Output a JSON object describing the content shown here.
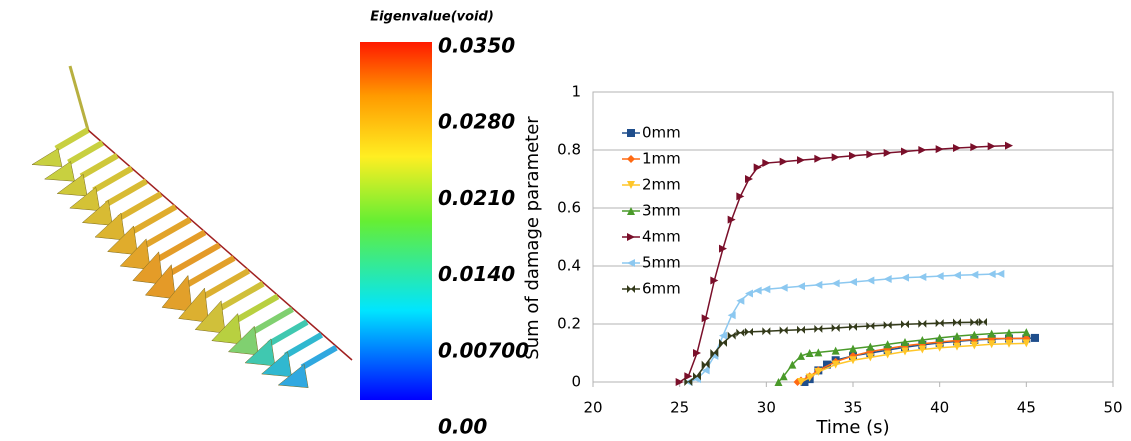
{
  "colorbar": {
    "title": "Eigenvalue(void)",
    "ticks": [
      {
        "value": 0.035,
        "label": "0.0350"
      },
      {
        "value": 0.028,
        "label": "0.0280"
      },
      {
        "value": 0.021,
        "label": "0.0210"
      },
      {
        "value": 0.014,
        "label": "0.0140"
      },
      {
        "value": 0.007,
        "label": "0.00700"
      },
      {
        "value": 0,
        "label": "0.00"
      }
    ]
  },
  "chart_data": {
    "type": "line",
    "xlabel": "Time (s)",
    "ylabel": "Sum of damage parameter",
    "xlim": [
      20,
      50
    ],
    "xticks": [
      20,
      25,
      30,
      35,
      40,
      45,
      50
    ],
    "ylim": [
      0,
      1
    ],
    "yticks": [
      0,
      0.2,
      0.4,
      0.6,
      0.8,
      1
    ],
    "grid": true,
    "series": [
      {
        "name": "0mm",
        "color": "#1f4e8c",
        "marker": "square",
        "x": [
          32.2,
          32.5,
          33,
          33.5,
          34,
          35,
          36,
          37,
          38,
          39,
          40,
          41,
          42,
          43,
          44,
          45,
          45.5
        ],
        "values": [
          0,
          0.01,
          0.04,
          0.06,
          0.075,
          0.09,
          0.1,
          0.11,
          0.12,
          0.128,
          0.135,
          0.14,
          0.145,
          0.148,
          0.15,
          0.15,
          0.152
        ]
      },
      {
        "name": "1mm",
        "color": "#ff6a13",
        "marker": "diamond",
        "x": [
          31.8,
          32,
          32.5,
          33,
          34,
          35,
          36,
          37,
          38,
          39,
          40,
          41,
          42,
          43,
          44,
          45
        ],
        "values": [
          0,
          0.005,
          0.02,
          0.04,
          0.07,
          0.09,
          0.105,
          0.115,
          0.125,
          0.132,
          0.138,
          0.143,
          0.147,
          0.15,
          0.15,
          0.151
        ]
      },
      {
        "name": "2mm",
        "color": "#ffc629",
        "marker": "tri-down",
        "x": [
          32,
          32.5,
          33,
          34,
          35,
          36,
          37,
          38,
          39,
          40,
          41,
          42,
          43,
          44,
          45
        ],
        "values": [
          0,
          0.015,
          0.035,
          0.06,
          0.075,
          0.085,
          0.095,
          0.105,
          0.112,
          0.118,
          0.122,
          0.126,
          0.13,
          0.132,
          0.133
        ]
      },
      {
        "name": "3mm",
        "color": "#4a9a2a",
        "marker": "tri-up",
        "x": [
          30.7,
          31,
          31.5,
          32,
          32.5,
          33,
          34,
          35,
          36,
          37,
          38,
          39,
          40,
          41,
          42,
          43,
          44,
          45
        ],
        "values": [
          0,
          0.02,
          0.06,
          0.09,
          0.1,
          0.102,
          0.108,
          0.115,
          0.122,
          0.13,
          0.138,
          0.145,
          0.152,
          0.158,
          0.163,
          0.167,
          0.17,
          0.172
        ]
      },
      {
        "name": "4mm",
        "color": "#7a0f2a",
        "marker": "tri-right",
        "x": [
          25,
          25.5,
          26,
          26.5,
          27,
          27.5,
          28,
          28.5,
          29,
          29.5,
          30,
          31,
          32,
          33,
          34,
          35,
          36,
          37,
          38,
          39,
          40,
          41,
          42,
          43,
          44
        ],
        "values": [
          0,
          0.02,
          0.1,
          0.22,
          0.35,
          0.46,
          0.56,
          0.64,
          0.7,
          0.74,
          0.755,
          0.76,
          0.765,
          0.77,
          0.775,
          0.78,
          0.785,
          0.79,
          0.795,
          0.8,
          0.803,
          0.807,
          0.81,
          0.813,
          0.815
        ]
      },
      {
        "name": "5mm",
        "color": "#8cc8f0",
        "marker": "tri-left",
        "x": [
          25.5,
          26,
          26.5,
          27,
          27.5,
          28,
          28.5,
          29,
          29.5,
          30,
          31,
          32,
          33,
          34,
          35,
          36,
          37,
          38,
          39,
          40,
          41,
          42,
          43,
          43.5
        ],
        "values": [
          0,
          0.01,
          0.04,
          0.09,
          0.16,
          0.23,
          0.28,
          0.305,
          0.315,
          0.32,
          0.325,
          0.33,
          0.335,
          0.34,
          0.345,
          0.35,
          0.355,
          0.36,
          0.362,
          0.365,
          0.368,
          0.37,
          0.372,
          0.373
        ]
      },
      {
        "name": "6mm",
        "color": "#333a1a",
        "marker": "bowtie",
        "x": [
          25.5,
          26,
          26.5,
          27,
          27.5,
          28,
          28.5,
          29,
          30,
          31,
          32,
          33,
          34,
          35,
          36,
          37,
          38,
          39,
          40,
          41,
          42,
          42.5
        ],
        "values": [
          0,
          0.02,
          0.06,
          0.1,
          0.135,
          0.16,
          0.17,
          0.173,
          0.175,
          0.178,
          0.18,
          0.183,
          0.186,
          0.19,
          0.193,
          0.196,
          0.199,
          0.201,
          0.203,
          0.205,
          0.206,
          0.207
        ]
      }
    ]
  }
}
